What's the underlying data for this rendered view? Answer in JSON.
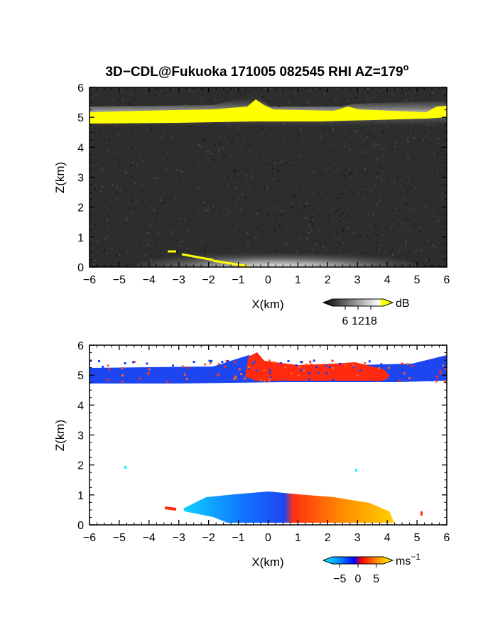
{
  "title_parts": {
    "main": "3D−CDL@Fukuoka 171005 082545 RHI AZ=179",
    "sup": "o"
  },
  "chart_data": [
    {
      "type": "heatmap",
      "name": "reflectivity",
      "xlabel": "X(km)",
      "ylabel": "Z(km)",
      "xlim": [
        -6,
        6
      ],
      "ylim": [
        0,
        6
      ],
      "xticks": [
        "−6",
        "−5",
        "−4",
        "−3",
        "−2",
        "−1",
        "0",
        "1",
        "2",
        "3",
        "4",
        "5",
        "6"
      ],
      "yticks": [
        "0",
        "1",
        "2",
        "3",
        "4",
        "5",
        "6"
      ],
      "colorbar": {
        "unit": "dB",
        "ticks": [
          "6",
          "12",
          "18"
        ],
        "tick_values": [
          6,
          12,
          18
        ],
        "range": [
          0,
          24
        ],
        "colors": [
          "#000000",
          "#ffffff",
          "#ffff00"
        ]
      },
      "features": {
        "cloud_layer_altitude_km": [
          4.8,
          5.4
        ],
        "surface_echo_top_km": 1.0
      },
      "background": "#2d2d2d"
    },
    {
      "type": "heatmap",
      "name": "doppler_velocity",
      "xlabel": "X(km)",
      "ylabel": "Z(km)",
      "xlim": [
        -6,
        6
      ],
      "ylim": [
        0,
        6
      ],
      "xticks": [
        "−6",
        "−5",
        "−4",
        "−3",
        "−2",
        "−1",
        "0",
        "1",
        "2",
        "3",
        "4",
        "5",
        "6"
      ],
      "yticks": [
        "0",
        "1",
        "2",
        "3",
        "4",
        "5",
        "6"
      ],
      "colorbar": {
        "unit": "ms",
        "unit_sup": "−1",
        "ticks": [
          "−5",
          "0",
          "5"
        ],
        "tick_values": [
          -5,
          0,
          5
        ],
        "range": [
          -7,
          7
        ],
        "colors": [
          "#00ffff",
          "#0080ff",
          "#0000ff",
          "#ff0000",
          "#ffa000",
          "#ffff00"
        ]
      },
      "features": {
        "cloud_layer_altitude_km": [
          4.8,
          5.4
        ],
        "surface_echo_top_km": 1.0
      },
      "colors": {
        "negative": "#1e46f0",
        "positive": "#ff2a10"
      }
    }
  ]
}
